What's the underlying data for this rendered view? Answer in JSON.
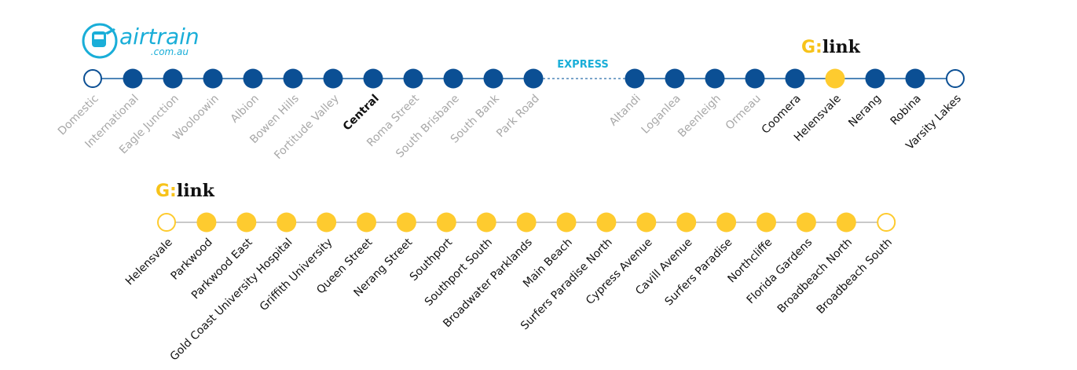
{
  "airtrain_logo": {
    "word": "airtrain",
    "domain": ".com.au"
  },
  "top_line": {
    "gold_coast_logo": {
      "g": "G:",
      "link": "link"
    },
    "express": "EXPRESS",
    "stations": [
      {
        "name": "Domestic",
        "dot": "terminus",
        "label": "muted"
      },
      {
        "name": "International",
        "dot": "stop",
        "label": "muted"
      },
      {
        "name": "Eagle Junction",
        "dot": "stop",
        "label": "muted"
      },
      {
        "name": "Wooloowin",
        "dot": "stop",
        "label": "muted"
      },
      {
        "name": "Albion",
        "dot": "stop",
        "label": "muted"
      },
      {
        "name": "Bowen Hills",
        "dot": "stop",
        "label": "muted"
      },
      {
        "name": "Fortitude Valley",
        "dot": "stop",
        "label": "muted"
      },
      {
        "name": "Central",
        "dot": "stop",
        "label": "bold"
      },
      {
        "name": "Roma Street",
        "dot": "stop",
        "label": "muted"
      },
      {
        "name": "South Brisbane",
        "dot": "stop",
        "label": "muted"
      },
      {
        "name": "South Bank",
        "dot": "stop",
        "label": "muted"
      },
      {
        "name": "Park Road",
        "dot": "stop",
        "label": "muted"
      },
      {
        "name": "Altandi",
        "dot": "stop",
        "label": "muted"
      },
      {
        "name": "Loganlea",
        "dot": "stop",
        "label": "muted"
      },
      {
        "name": "Beenleigh",
        "dot": "stop",
        "label": "muted"
      },
      {
        "name": "Ormeau",
        "dot": "stop",
        "label": "muted"
      },
      {
        "name": "Coomera",
        "dot": "stop",
        "label": "dark"
      },
      {
        "name": "Helensvale",
        "dot": "interchange",
        "label": "dark"
      },
      {
        "name": "Nerang",
        "dot": "stop",
        "label": "dark"
      },
      {
        "name": "Robina",
        "dot": "stop",
        "label": "dark"
      },
      {
        "name": "Varsity Lakes",
        "dot": "terminus",
        "label": "dark"
      }
    ]
  },
  "bottom_line": {
    "gold_coast_logo": {
      "g": "G:",
      "link": "link"
    },
    "stations": [
      {
        "name": "Helensvale",
        "dot": "terminus"
      },
      {
        "name": "Parkwood",
        "dot": "stop"
      },
      {
        "name": "Parkwood East",
        "dot": "stop"
      },
      {
        "name": "Gold Coast University Hospital",
        "dot": "stop"
      },
      {
        "name": "Griffith University",
        "dot": "stop"
      },
      {
        "name": "Queen Street",
        "dot": "stop"
      },
      {
        "name": "Nerang Street",
        "dot": "stop"
      },
      {
        "name": "Southport",
        "dot": "stop"
      },
      {
        "name": "Southport South",
        "dot": "stop"
      },
      {
        "name": "Broadwater Parklands",
        "dot": "stop"
      },
      {
        "name": "Main Beach",
        "dot": "stop"
      },
      {
        "name": "Surfers Paradise North",
        "dot": "stop"
      },
      {
        "name": "Cypress Avenue",
        "dot": "stop"
      },
      {
        "name": "Cavill Avenue",
        "dot": "stop"
      },
      {
        "name": "Surfers Paradise",
        "dot": "stop"
      },
      {
        "name": "Northcliffe",
        "dot": "stop"
      },
      {
        "name": "Florida Gardens",
        "dot": "stop"
      },
      {
        "name": "Broadbeach North",
        "dot": "stop"
      },
      {
        "name": "Broadbeach South",
        "dot": "terminus"
      }
    ]
  }
}
